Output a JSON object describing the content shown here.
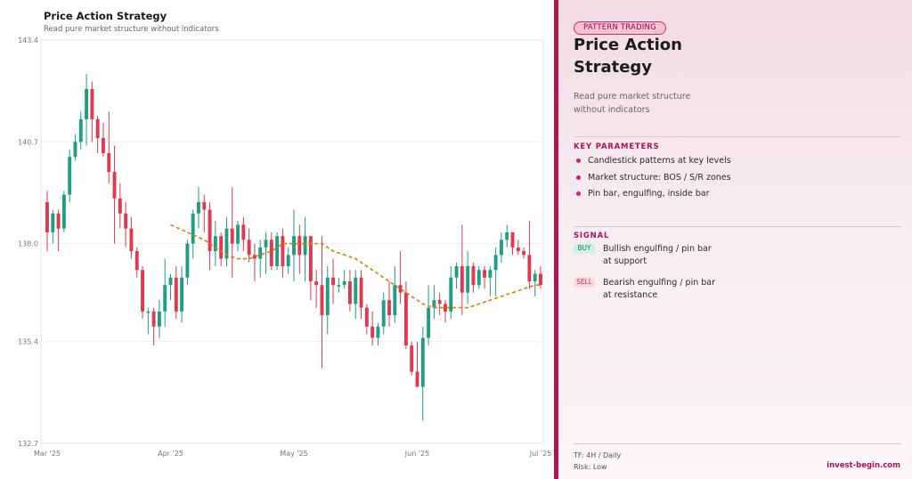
{
  "chart_data": {
    "type": "candlestick",
    "title": "Price Action Strategy",
    "subtitle": "Read pure market structure without indicators",
    "ylim": [
      132.7,
      143.4
    ],
    "y_ticks": [
      "143.4",
      "140.7",
      "138.0",
      "135.4",
      "132.7"
    ],
    "y_tick_values": [
      143.4,
      140.7,
      138.0,
      135.4,
      132.7
    ],
    "x_ticks": [
      "Mar '25",
      "Apr '25",
      "May '25",
      "Jun '25",
      "Jul '25"
    ],
    "x_tick_index": [
      0,
      22,
      44,
      66,
      88
    ],
    "grid": true,
    "colors": {
      "up": "#1f9e80",
      "down": "#e0394f",
      "ma": "#e07b0c"
    },
    "ohlc": [
      {
        "o": 139.1,
        "h": 139.4,
        "l": 137.8,
        "c": 138.3
      },
      {
        "o": 138.3,
        "h": 138.9,
        "l": 138.0,
        "c": 138.8
      },
      {
        "o": 138.8,
        "h": 138.9,
        "l": 137.8,
        "c": 138.4
      },
      {
        "o": 138.4,
        "h": 139.4,
        "l": 138.3,
        "c": 139.3
      },
      {
        "o": 139.3,
        "h": 140.5,
        "l": 139.1,
        "c": 140.3
      },
      {
        "o": 140.3,
        "h": 140.9,
        "l": 140.2,
        "c": 140.7
      },
      {
        "o": 140.7,
        "h": 141.5,
        "l": 140.5,
        "c": 141.3
      },
      {
        "o": 141.3,
        "h": 142.5,
        "l": 140.6,
        "c": 142.1
      },
      {
        "o": 142.1,
        "h": 142.3,
        "l": 140.7,
        "c": 141.3
      },
      {
        "o": 141.3,
        "h": 141.4,
        "l": 140.4,
        "c": 140.8
      },
      {
        "o": 140.8,
        "h": 141.2,
        "l": 140.3,
        "c": 140.4
      },
      {
        "o": 140.4,
        "h": 141.5,
        "l": 139.6,
        "c": 139.9
      },
      {
        "o": 139.9,
        "h": 140.6,
        "l": 138.0,
        "c": 139.2
      },
      {
        "o": 139.2,
        "h": 139.6,
        "l": 138.4,
        "c": 138.8
      },
      {
        "o": 138.8,
        "h": 139.1,
        "l": 137.9,
        "c": 138.4
      },
      {
        "o": 138.4,
        "h": 138.7,
        "l": 137.6,
        "c": 137.8
      },
      {
        "o": 137.8,
        "h": 137.9,
        "l": 137.1,
        "c": 137.3
      },
      {
        "o": 137.3,
        "h": 137.4,
        "l": 136.0,
        "c": 136.2
      },
      {
        "o": 136.2,
        "h": 136.3,
        "l": 135.6,
        "c": 136.2
      },
      {
        "o": 136.2,
        "h": 136.3,
        "l": 135.3,
        "c": 135.8
      },
      {
        "o": 135.8,
        "h": 136.5,
        "l": 135.5,
        "c": 136.2
      },
      {
        "o": 136.2,
        "h": 137.6,
        "l": 135.8,
        "c": 136.9
      },
      {
        "o": 136.9,
        "h": 137.2,
        "l": 136.5,
        "c": 137.1
      },
      {
        "o": 137.1,
        "h": 137.4,
        "l": 136.0,
        "c": 136.2
      },
      {
        "o": 136.2,
        "h": 137.4,
        "l": 135.9,
        "c": 137.1
      },
      {
        "o": 137.1,
        "h": 138.1,
        "l": 136.9,
        "c": 138.0
      },
      {
        "o": 138.0,
        "h": 138.9,
        "l": 137.6,
        "c": 138.8
      },
      {
        "o": 138.8,
        "h": 139.5,
        "l": 138.4,
        "c": 139.1
      },
      {
        "o": 139.1,
        "h": 139.3,
        "l": 138.3,
        "c": 138.9
      },
      {
        "o": 138.9,
        "h": 139.1,
        "l": 137.3,
        "c": 137.8
      },
      {
        "o": 137.8,
        "h": 138.6,
        "l": 137.4,
        "c": 138.2
      },
      {
        "o": 138.2,
        "h": 138.3,
        "l": 137.4,
        "c": 137.6
      },
      {
        "o": 137.6,
        "h": 138.7,
        "l": 137.4,
        "c": 138.4
      },
      {
        "o": 138.4,
        "h": 139.5,
        "l": 137.1,
        "c": 138.0
      },
      {
        "o": 138.0,
        "h": 138.6,
        "l": 137.8,
        "c": 138.5
      },
      {
        "o": 138.5,
        "h": 138.7,
        "l": 137.8,
        "c": 138.1
      },
      {
        "o": 138.1,
        "h": 138.4,
        "l": 137.5,
        "c": 137.7
      },
      {
        "o": 137.7,
        "h": 138.0,
        "l": 137.0,
        "c": 137.6
      },
      {
        "o": 137.6,
        "h": 138.1,
        "l": 137.1,
        "c": 137.9
      },
      {
        "o": 137.9,
        "h": 138.3,
        "l": 137.2,
        "c": 138.1
      },
      {
        "o": 138.1,
        "h": 138.3,
        "l": 137.3,
        "c": 137.4
      },
      {
        "o": 137.4,
        "h": 138.3,
        "l": 137.3,
        "c": 138.2
      },
      {
        "o": 138.2,
        "h": 138.4,
        "l": 137.1,
        "c": 137.4
      },
      {
        "o": 137.4,
        "h": 137.9,
        "l": 137.2,
        "c": 137.7
      },
      {
        "o": 137.7,
        "h": 138.9,
        "l": 137.0,
        "c": 138.2
      },
      {
        "o": 138.2,
        "h": 138.5,
        "l": 137.2,
        "c": 137.7
      },
      {
        "o": 137.7,
        "h": 138.7,
        "l": 137.0,
        "c": 138.2
      },
      {
        "o": 138.2,
        "h": 138.2,
        "l": 136.5,
        "c": 137.0
      },
      {
        "o": 137.0,
        "h": 137.3,
        "l": 136.3,
        "c": 136.9
      },
      {
        "o": 136.9,
        "h": 138.2,
        "l": 134.7,
        "c": 136.1
      },
      {
        "o": 136.1,
        "h": 137.4,
        "l": 135.6,
        "c": 137.1
      },
      {
        "o": 137.1,
        "h": 137.6,
        "l": 136.4,
        "c": 136.9
      },
      {
        "o": 136.9,
        "h": 137.1,
        "l": 136.7,
        "c": 136.9
      },
      {
        "o": 136.9,
        "h": 137.3,
        "l": 136.8,
        "c": 137.0
      },
      {
        "o": 137.0,
        "h": 137.3,
        "l": 136.2,
        "c": 136.4
      },
      {
        "o": 136.4,
        "h": 137.3,
        "l": 136.0,
        "c": 137.1
      },
      {
        "o": 137.1,
        "h": 137.3,
        "l": 136.0,
        "c": 136.3
      },
      {
        "o": 136.3,
        "h": 136.4,
        "l": 135.6,
        "c": 135.8
      },
      {
        "o": 135.8,
        "h": 136.2,
        "l": 135.3,
        "c": 135.5
      },
      {
        "o": 135.5,
        "h": 135.9,
        "l": 135.3,
        "c": 135.8
      },
      {
        "o": 135.8,
        "h": 136.7,
        "l": 135.6,
        "c": 136.5
      },
      {
        "o": 136.5,
        "h": 137.0,
        "l": 135.8,
        "c": 136.1
      },
      {
        "o": 136.1,
        "h": 137.4,
        "l": 135.9,
        "c": 136.9
      },
      {
        "o": 136.9,
        "h": 137.8,
        "l": 136.4,
        "c": 136.7
      },
      {
        "o": 136.7,
        "h": 137.0,
        "l": 135.2,
        "c": 135.3
      },
      {
        "o": 135.3,
        "h": 135.4,
        "l": 134.5,
        "c": 134.6
      },
      {
        "o": 134.6,
        "h": 135.4,
        "l": 134.2,
        "c": 134.2
      },
      {
        "o": 134.2,
        "h": 135.8,
        "l": 133.3,
        "c": 135.5
      },
      {
        "o": 135.5,
        "h": 136.9,
        "l": 135.3,
        "c": 136.3
      },
      {
        "o": 136.3,
        "h": 136.9,
        "l": 136.0,
        "c": 136.5
      },
      {
        "o": 136.5,
        "h": 136.7,
        "l": 136.1,
        "c": 136.4
      },
      {
        "o": 136.4,
        "h": 136.5,
        "l": 135.9,
        "c": 136.2
      },
      {
        "o": 136.2,
        "h": 137.4,
        "l": 136.0,
        "c": 137.1
      },
      {
        "o": 137.1,
        "h": 137.5,
        "l": 136.8,
        "c": 137.4
      },
      {
        "o": 137.4,
        "h": 138.5,
        "l": 136.1,
        "c": 136.7
      },
      {
        "o": 136.7,
        "h": 137.8,
        "l": 136.4,
        "c": 137.4
      },
      {
        "o": 137.4,
        "h": 137.5,
        "l": 136.7,
        "c": 136.9
      },
      {
        "o": 136.9,
        "h": 137.4,
        "l": 136.8,
        "c": 137.3
      },
      {
        "o": 137.3,
        "h": 137.4,
        "l": 136.8,
        "c": 137.1
      },
      {
        "o": 137.1,
        "h": 137.4,
        "l": 136.6,
        "c": 137.3
      },
      {
        "o": 137.3,
        "h": 137.9,
        "l": 136.6,
        "c": 137.7
      },
      {
        "o": 137.7,
        "h": 138.3,
        "l": 137.5,
        "c": 138.1
      },
      {
        "o": 138.1,
        "h": 138.5,
        "l": 137.9,
        "c": 138.3
      },
      {
        "o": 138.3,
        "h": 138.3,
        "l": 137.7,
        "c": 137.9
      },
      {
        "o": 137.9,
        "h": 138.1,
        "l": 137.7,
        "c": 137.8
      },
      {
        "o": 137.8,
        "h": 137.9,
        "l": 137.6,
        "c": 137.7
      },
      {
        "o": 137.7,
        "h": 138.6,
        "l": 136.8,
        "c": 137.0
      },
      {
        "o": 137.0,
        "h": 137.3,
        "l": 136.6,
        "c": 137.2
      },
      {
        "o": 137.2,
        "h": 137.4,
        "l": 136.8,
        "c": 136.9
      }
    ],
    "ma": [
      [
        22,
        138.5
      ],
      [
        25,
        138.3
      ],
      [
        28,
        138.1
      ],
      [
        30,
        137.9
      ],
      [
        32,
        137.7
      ],
      [
        34,
        137.6
      ],
      [
        36,
        137.6
      ],
      [
        38,
        137.7
      ],
      [
        40,
        137.8
      ],
      [
        42,
        138.0
      ],
      [
        45,
        138.0
      ],
      [
        47,
        138.0
      ],
      [
        49,
        138.0
      ],
      [
        51,
        137.8
      ],
      [
        53,
        137.7
      ],
      [
        55,
        137.6
      ],
      [
        57,
        137.4
      ],
      [
        59,
        137.2
      ],
      [
        61,
        137.0
      ],
      [
        63,
        136.8
      ],
      [
        65,
        136.6
      ],
      [
        67,
        136.4
      ],
      [
        69,
        136.3
      ],
      [
        71,
        136.3
      ],
      [
        73,
        136.3
      ],
      [
        75,
        136.3
      ],
      [
        77,
        136.4
      ],
      [
        79,
        136.5
      ],
      [
        81,
        136.6
      ],
      [
        83,
        136.7
      ],
      [
        85,
        136.8
      ],
      [
        87,
        136.9
      ],
      [
        88,
        136.9
      ]
    ]
  },
  "panel": {
    "tag": "PATTERN TRADING",
    "title": "Price Action Strategy",
    "description": "Read pure market structure without indicators",
    "key_params_heading": "KEY PARAMETERS",
    "key_params": [
      "Candlestick patterns at key levels",
      "Market structure: BOS / S/R zones",
      "Pin bar, engulfing, inside bar"
    ],
    "signal_heading": "SIGNAL",
    "signals": {
      "buy_label": "BUY",
      "buy_text": "Bullish engulfing / pin bar at support",
      "sell_label": "SELL",
      "sell_text": "Bearish engulfing / pin bar at resistance"
    },
    "timeframe": "TF: 4H / Daily",
    "risk": "Risk: Low",
    "brand": "invest-begin.com"
  }
}
